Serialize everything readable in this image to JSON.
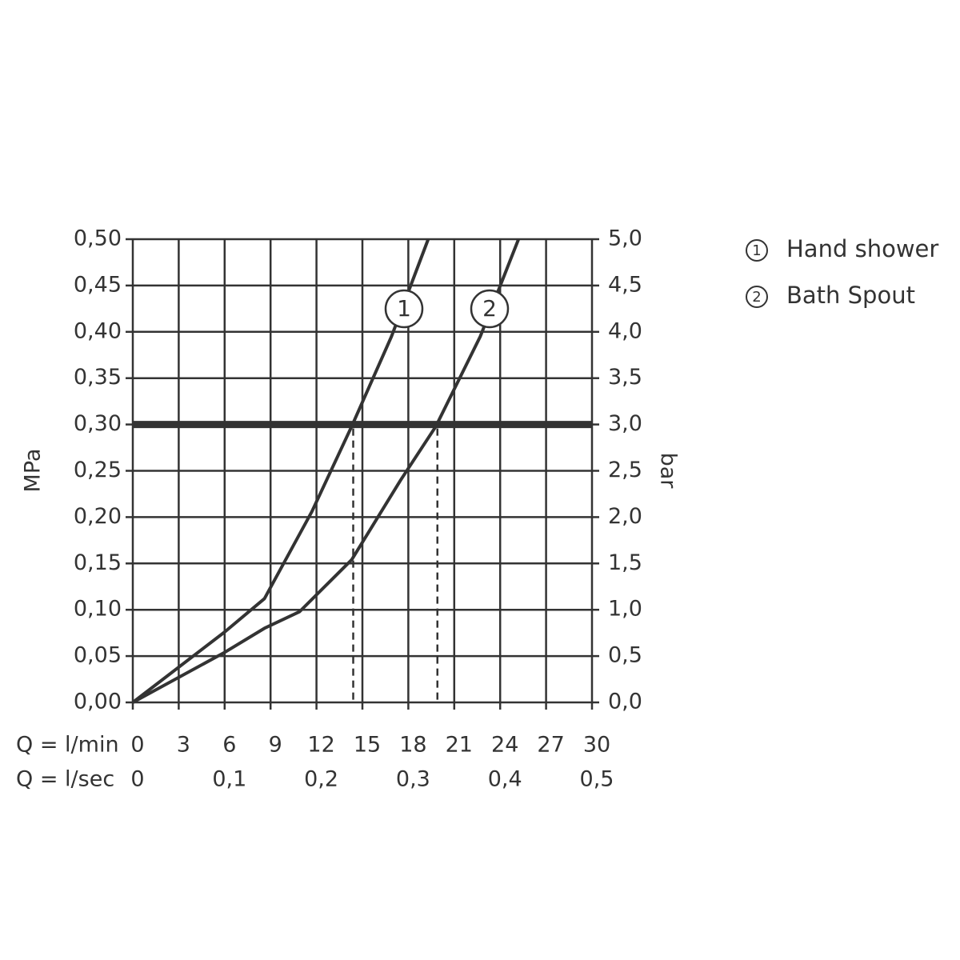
{
  "chart_data": {
    "type": "line",
    "xlabel": "Q = l/min",
    "x2label": "Q = l/sec",
    "ylabel": "MPa",
    "y2label": "bar",
    "xlim": [
      0,
      30
    ],
    "xticks": [
      0,
      3,
      6,
      9,
      12,
      15,
      18,
      21,
      24,
      27,
      30
    ],
    "x2lim": [
      0,
      0.5
    ],
    "x2ticks": [
      0,
      {
        "value": 0.1,
        "label": "0,1"
      },
      {
        "value": 0.2,
        "label": "0,2"
      },
      {
        "value": 0.3,
        "label": "0,3"
      },
      {
        "value": 0.4,
        "label": "0,4"
      },
      {
        "value": 0.5,
        "label": "0,5"
      }
    ],
    "ylim": [
      0,
      0.5
    ],
    "yticks": [
      {
        "value": 0,
        "label": "0,00"
      },
      {
        "value": 0.05,
        "label": "0,05"
      },
      {
        "value": 0.1,
        "label": "0,10"
      },
      {
        "value": 0.15,
        "label": "0,15"
      },
      {
        "value": 0.2,
        "label": "0,20"
      },
      {
        "value": 0.25,
        "label": "0,25"
      },
      {
        "value": 0.3,
        "label": "0,30"
      },
      {
        "value": 0.35,
        "label": "0,35"
      },
      {
        "value": 0.4,
        "label": "0,40"
      },
      {
        "value": 0.45,
        "label": "0,45"
      },
      {
        "value": 0.5,
        "label": "0,50"
      }
    ],
    "y2lim": [
      0,
      5
    ],
    "y2ticks": [
      {
        "value": 0,
        "label": "0,0"
      },
      {
        "value": 0.5,
        "label": "0,5"
      },
      {
        "value": 1,
        "label": "1,0"
      },
      {
        "value": 1.5,
        "label": "1,5"
      },
      {
        "value": 2,
        "label": "2,0"
      },
      {
        "value": 2.5,
        "label": "2,5"
      },
      {
        "value": 3,
        "label": "3,0"
      },
      {
        "value": 3.5,
        "label": "3,5"
      },
      {
        "value": 4,
        "label": "4,0"
      },
      {
        "value": 4.5,
        "label": "4,5"
      },
      {
        "value": 5,
        "label": "5,0"
      }
    ],
    "grid": true,
    "reference_line": 0.3,
    "markers": [
      14.4,
      19.9
    ],
    "series": [
      {
        "name": "Hand shower",
        "label": "1",
        "color": "#333333",
        "x": [
          0,
          6.0,
          8.6,
          11.7,
          14.3,
          16.9,
          19.3
        ],
        "values": [
          0,
          0.076,
          0.112,
          0.206,
          0.298,
          0.395,
          0.5
        ]
      },
      {
        "name": "Bath Spout",
        "label": "2",
        "color": "#333333",
        "x": [
          0,
          6.0,
          8.6,
          10.9,
          14.3,
          17.5,
          19.8,
          22.7,
          25.2
        ],
        "values": [
          0,
          0.054,
          0.08,
          0.098,
          0.154,
          0.24,
          0.298,
          0.395,
          0.5
        ]
      }
    ]
  }
}
